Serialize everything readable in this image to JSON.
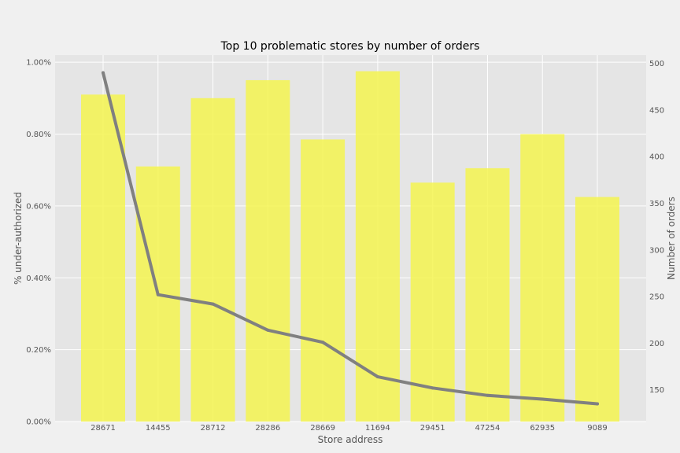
{
  "chart_data": {
    "type": "bar",
    "title": "Top 10 problematic stores by number of orders",
    "xlabel": "Store address",
    "ylabel": "% under-authorized",
    "y2label": "Number of orders",
    "categories": [
      "28671",
      "14455",
      "28712",
      "28286",
      "28669",
      "11694",
      "29451",
      "47254",
      "62935",
      "9089"
    ],
    "series": [
      {
        "type": "bar",
        "axis": "left",
        "color": "#f5f550",
        "values": [
          0.0091,
          0.0071,
          0.009,
          0.0095,
          0.00785,
          0.00975,
          0.00665,
          0.00705,
          0.008,
          0.00625
        ]
      },
      {
        "type": "line",
        "axis": "right",
        "color": "#808080",
        "values": [
          490,
          252,
          242,
          214,
          201,
          164,
          152,
          144,
          140,
          135
        ]
      }
    ],
    "ylim": [
      0,
      0.0102
    ],
    "yticks": [
      0,
      0.002,
      0.004,
      0.006,
      0.008,
      0.01
    ],
    "ytick_labels": [
      "0.00%",
      "0.20%",
      "0.40%",
      "0.60%",
      "0.80%",
      "1.00%"
    ],
    "y2lim": [
      116,
      509
    ],
    "y2ticks": [
      150,
      200,
      250,
      300,
      350,
      400,
      450,
      500
    ],
    "y2tick_labels": [
      "150",
      "200",
      "250",
      "300",
      "350",
      "400",
      "450",
      "500"
    ],
    "grid": true,
    "colors": {
      "background": "#f0f0f0",
      "plot_background": "#e5e5e5",
      "grid": "#ffffff",
      "bar": "#f5f550",
      "line": "#808080"
    }
  }
}
